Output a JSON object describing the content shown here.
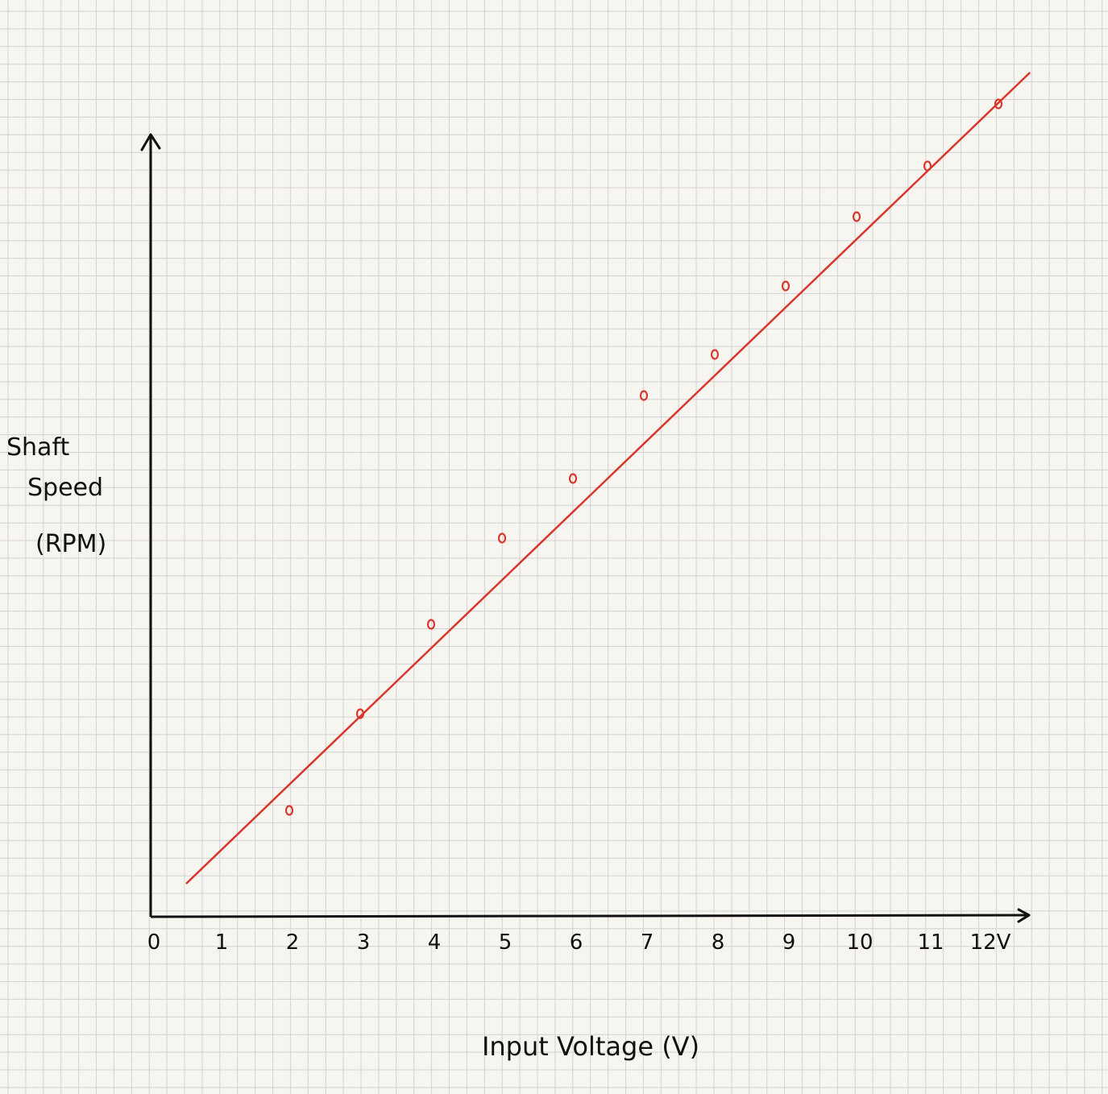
{
  "chart_data": {
    "type": "scatter",
    "xlabel": "Input Voltage (V)",
    "ylabel_lines": [
      "Shaft",
      "Speed",
      "(RPM)"
    ],
    "x_ticks": [
      "0",
      "1",
      "2",
      "3",
      "4",
      "5",
      "6",
      "7",
      "8",
      "9",
      "10",
      "11",
      "12V"
    ],
    "xlim": [
      0,
      12.5
    ],
    "ylim": [
      0,
      100
    ],
    "y_tick_labels": "none",
    "grid": true,
    "points": [
      {
        "x": 2,
        "y": 13.2
      },
      {
        "x": 3,
        "y": 25.2
      },
      {
        "x": 4,
        "y": 36.3
      },
      {
        "x": 5,
        "y": 47.0
      },
      {
        "x": 6,
        "y": 54.4
      },
      {
        "x": 7,
        "y": 64.7
      },
      {
        "x": 8,
        "y": 69.8
      },
      {
        "x": 9,
        "y": 78.3
      },
      {
        "x": 10,
        "y": 86.9
      },
      {
        "x": 11,
        "y": 93.2
      },
      {
        "x": 12,
        "y": 100.9
      }
    ],
    "fit_line": {
      "x": [
        0.5,
        12.4
      ],
      "y": [
        4.1,
        104.8
      ]
    },
    "colors": {
      "data": "#d9362b",
      "axis": "#111111",
      "grid": "#d2d2d2",
      "background": "#f7f5f0"
    }
  }
}
